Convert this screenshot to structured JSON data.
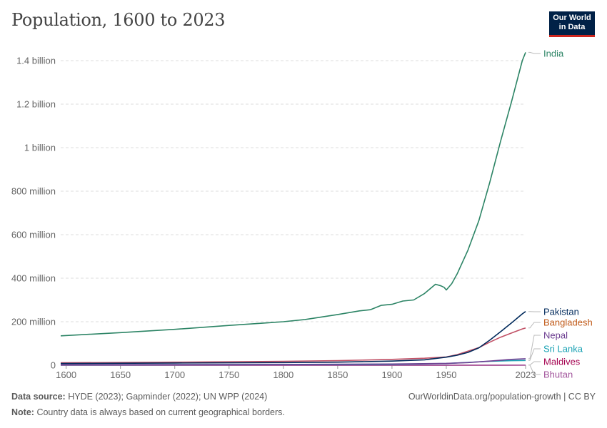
{
  "header": {
    "title": "Population, 1600 to 2023",
    "logo_line1": "Our World",
    "logo_line2": "in Data"
  },
  "footer": {
    "source_label": "Data source:",
    "source_text": "HYDE (2023); Gapminder (2022); UN WPP (2024)",
    "note_label": "Note:",
    "note_text": "Country data is always based on current geographical borders.",
    "url": "OurWorldinData.org/population-growth | CC BY"
  },
  "chart_data": {
    "type": "line",
    "title": "Population, 1600 to 2023",
    "xlabel": "",
    "ylabel": "",
    "xlim": [
      1595,
      2023
    ],
    "ylim": [
      0,
      1450000000
    ],
    "x_ticks": [
      1600,
      1650,
      1700,
      1750,
      1800,
      1850,
      1900,
      1950,
      2023
    ],
    "x_tick_labels": [
      "1600",
      "1650",
      "1700",
      "1750",
      "1800",
      "1850",
      "1900",
      "1950",
      "2023"
    ],
    "y_ticks": [
      0,
      200000000,
      400000000,
      600000000,
      800000000,
      1000000000,
      1200000000,
      1400000000
    ],
    "y_tick_labels": [
      "0",
      "200 million",
      "400 million",
      "600 million",
      "800 million",
      "1 billion",
      "1.2 billion",
      "1.4 billion"
    ],
    "grid": true,
    "legend": "right, labels at line ends",
    "series": [
      {
        "name": "India",
        "color": "#2c8465",
        "points": [
          [
            1595,
            135000000
          ],
          [
            1650,
            150000000
          ],
          [
            1700,
            165000000
          ],
          [
            1750,
            183000000
          ],
          [
            1800,
            200000000
          ],
          [
            1820,
            210000000
          ],
          [
            1850,
            233000000
          ],
          [
            1870,
            250000000
          ],
          [
            1880,
            255000000
          ],
          [
            1890,
            275000000
          ],
          [
            1900,
            280000000
          ],
          [
            1910,
            295000000
          ],
          [
            1920,
            300000000
          ],
          [
            1930,
            330000000
          ],
          [
            1940,
            372000000
          ],
          [
            1945,
            365000000
          ],
          [
            1948,
            358000000
          ],
          [
            1950,
            346000000
          ],
          [
            1955,
            375000000
          ],
          [
            1960,
            420000000
          ],
          [
            1970,
            530000000
          ],
          [
            1980,
            665000000
          ],
          [
            1990,
            840000000
          ],
          [
            2000,
            1030000000
          ],
          [
            2010,
            1210000000
          ],
          [
            2020,
            1400000000
          ],
          [
            2023,
            1438000000
          ]
        ]
      },
      {
        "name": "Pakistan",
        "color": "#00295b",
        "points": [
          [
            1595,
            8000000
          ],
          [
            1700,
            10000000
          ],
          [
            1800,
            12000000
          ],
          [
            1850,
            14000000
          ],
          [
            1900,
            19000000
          ],
          [
            1930,
            25000000
          ],
          [
            1950,
            37000000
          ],
          [
            1960,
            46000000
          ],
          [
            1970,
            59000000
          ],
          [
            1980,
            80000000
          ],
          [
            1990,
            115000000
          ],
          [
            2000,
            154000000
          ],
          [
            2010,
            194000000
          ],
          [
            2015,
            215000000
          ],
          [
            2020,
            236000000
          ],
          [
            2023,
            247000000
          ]
        ]
      },
      {
        "name": "Bangladesh",
        "color": "#c15065",
        "points": [
          [
            1595,
            11000000
          ],
          [
            1700,
            14000000
          ],
          [
            1800,
            18000000
          ],
          [
            1850,
            21000000
          ],
          [
            1900,
            27000000
          ],
          [
            1930,
            32000000
          ],
          [
            1950,
            38000000
          ],
          [
            1960,
            49000000
          ],
          [
            1970,
            65000000
          ],
          [
            1980,
            81000000
          ],
          [
            1990,
            106000000
          ],
          [
            2000,
            129000000
          ],
          [
            2010,
            148000000
          ],
          [
            2020,
            167000000
          ],
          [
            2023,
            171000000
          ]
        ]
      },
      {
        "name": "Nepal",
        "color": "#6d3e91",
        "points": [
          [
            1595,
            2500000
          ],
          [
            1800,
            3500000
          ],
          [
            1900,
            5500000
          ],
          [
            1950,
            8500000
          ],
          [
            1970,
            12000000
          ],
          [
            1990,
            19000000
          ],
          [
            2010,
            27000000
          ],
          [
            2023,
            30000000
          ]
        ]
      },
      {
        "name": "Sri Lanka",
        "color": "#18a1b3",
        "points": [
          [
            1595,
            1800000
          ],
          [
            1800,
            2500000
          ],
          [
            1900,
            4000000
          ],
          [
            1950,
            8000000
          ],
          [
            1970,
            13000000
          ],
          [
            1990,
            18000000
          ],
          [
            2010,
            21000000
          ],
          [
            2023,
            22000000
          ]
        ]
      },
      {
        "name": "Maldives",
        "color": "#a4004f",
        "points": [
          [
            1595,
            40000
          ],
          [
            1900,
            80000
          ],
          [
            1950,
            80000
          ],
          [
            2000,
            280000
          ],
          [
            2023,
            520000
          ]
        ]
      },
      {
        "name": "Bhutan",
        "color": "#a2559c",
        "points": [
          [
            1595,
            100000
          ],
          [
            1900,
            150000
          ],
          [
            1950,
            180000
          ],
          [
            2000,
            590000
          ],
          [
            2023,
            790000
          ]
        ]
      }
    ],
    "label_colors": {
      "India": "#2c8465",
      "Pakistan": "#00295b",
      "Bangladesh": "#c05917",
      "Nepal": "#6d3e91",
      "Sri Lanka": "#18a1b3",
      "Maldives": "#a4004f",
      "Bhutan": "#a2559c"
    }
  }
}
